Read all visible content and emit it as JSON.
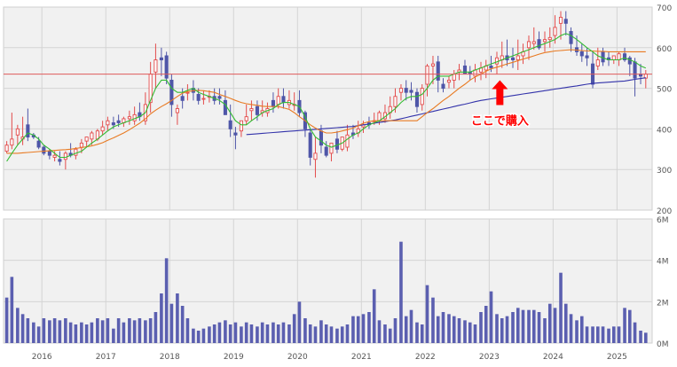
{
  "chart_data": [
    {
      "type": "candlestick",
      "title": "",
      "ylim": [
        200,
        700
      ],
      "y_ticks": [
        "700",
        "600",
        "500",
        "400",
        "300",
        "200"
      ],
      "x_ticks": [
        "2016",
        "2017",
        "2018",
        "2019",
        "2020",
        "2021",
        "2022",
        "2023",
        "2024",
        "2025"
      ],
      "grid": true,
      "reference_line": {
        "value": 535,
        "color": "#e05a5a"
      },
      "annotation": {
        "text": "ここで購入",
        "target": "2023",
        "price": 520,
        "color": "#ff0000"
      },
      "colors": {
        "up": "#e34b4b",
        "down": "#4f56a8",
        "ma_short": "#33bb33",
        "ma_mid": "#e87a22",
        "ma_long": "#3333aa"
      },
      "x": [
        2015.45,
        2015.53,
        2015.62,
        2015.7,
        2015.78,
        2015.87,
        2015.95,
        2016.03,
        2016.12,
        2016.2,
        2016.28,
        2016.37,
        2016.45,
        2016.53,
        2016.62,
        2016.7,
        2016.78,
        2016.87,
        2016.95,
        2017.03,
        2017.12,
        2017.2,
        2017.28,
        2017.37,
        2017.45,
        2017.53,
        2017.62,
        2017.7,
        2017.78,
        2017.87,
        2017.95,
        2018.03,
        2018.12,
        2018.2,
        2018.28,
        2018.37,
        2018.45,
        2018.53,
        2018.62,
        2018.7,
        2018.78,
        2018.87,
        2018.95,
        2019.03,
        2019.12,
        2019.2,
        2019.28,
        2019.37,
        2019.45,
        2019.53,
        2019.62,
        2019.7,
        2019.78,
        2019.87,
        2019.95,
        2020.03,
        2020.12,
        2020.2,
        2020.28,
        2020.37,
        2020.45,
        2020.53,
        2020.62,
        2020.7,
        2020.78,
        2020.87,
        2020.95,
        2021.03,
        2021.12,
        2021.2,
        2021.28,
        2021.37,
        2021.45,
        2021.53,
        2021.62,
        2021.7,
        2021.78,
        2021.87,
        2021.95,
        2022.03,
        2022.12,
        2022.2,
        2022.28,
        2022.37,
        2022.45,
        2022.53,
        2022.62,
        2022.7,
        2022.78,
        2022.87,
        2022.95,
        2023.03,
        2023.12,
        2023.2,
        2023.28,
        2023.37,
        2023.45,
        2023.53,
        2023.62,
        2023.7,
        2023.78,
        2023.87,
        2023.95,
        2024.03,
        2024.12,
        2024.2,
        2024.28,
        2024.37,
        2024.45,
        2024.53,
        2024.62,
        2024.7,
        2024.78,
        2024.87,
        2024.95,
        2025.03,
        2025.12,
        2025.2,
        2025.28,
        2025.37,
        2025.45
      ],
      "open": [
        345,
        360,
        385,
        375,
        410,
        385,
        370,
        355,
        345,
        330,
        325,
        325,
        340,
        335,
        355,
        370,
        375,
        375,
        395,
        410,
        415,
        420,
        415,
        425,
        420,
        440,
        420,
        465,
        540,
        575,
        580,
        520,
        440,
        480,
        490,
        500,
        485,
        475,
        480,
        480,
        480,
        470,
        420,
        390,
        395,
        420,
        445,
        455,
        440,
        440,
        470,
        460,
        480,
        460,
        460,
        470,
        440,
        390,
        325,
        395,
        355,
        340,
        375,
        350,
        355,
        390,
        390,
        405,
        415,
        420,
        420,
        425,
        440,
        455,
        490,
        500,
        495,
        490,
        460,
        510,
        555,
        565,
        510,
        515,
        520,
        540,
        555,
        540,
        530,
        540,
        545,
        555,
        560,
        570,
        580,
        575,
        570,
        580,
        600,
        610,
        620,
        615,
        620,
        630,
        660,
        670,
        640,
        600,
        590,
        580,
        560,
        555,
        590,
        575,
        570,
        570,
        585,
        575,
        565,
        535,
        525
      ],
      "high": [
        370,
        440,
        410,
        430,
        450,
        390,
        380,
        360,
        350,
        345,
        345,
        345,
        365,
        355,
        375,
        380,
        395,
        400,
        420,
        430,
        430,
        435,
        430,
        445,
        455,
        465,
        490,
        565,
        610,
        600,
        590,
        535,
        460,
        500,
        510,
        520,
        500,
        495,
        495,
        500,
        500,
        495,
        460,
        405,
        420,
        460,
        470,
        470,
        470,
        465,
        490,
        500,
        500,
        495,
        490,
        495,
        445,
        400,
        380,
        410,
        370,
        360,
        395,
        375,
        410,
        410,
        420,
        420,
        430,
        440,
        445,
        460,
        480,
        500,
        510,
        520,
        515,
        500,
        510,
        560,
        580,
        580,
        525,
        530,
        545,
        560,
        570,
        555,
        560,
        565,
        570,
        580,
        590,
        615,
        620,
        600,
        620,
        610,
        630,
        650,
        640,
        640,
        650,
        680,
        690,
        690,
        650,
        630,
        610,
        600,
        590,
        600,
        600,
        590,
        580,
        590,
        600,
        580,
        575,
        560,
        545
      ],
      "low": [
        340,
        350,
        360,
        360,
        370,
        375,
        350,
        335,
        325,
        320,
        310,
        300,
        330,
        325,
        340,
        355,
        360,
        370,
        385,
        395,
        400,
        405,
        405,
        410,
        410,
        420,
        410,
        440,
        500,
        530,
        510,
        430,
        410,
        450,
        470,
        470,
        460,
        460,
        465,
        460,
        460,
        440,
        380,
        350,
        380,
        410,
        420,
        420,
        430,
        430,
        440,
        450,
        450,
        450,
        445,
        430,
        380,
        310,
        280,
        340,
        330,
        320,
        340,
        345,
        345,
        375,
        380,
        390,
        400,
        410,
        410,
        415,
        425,
        440,
        470,
        470,
        470,
        440,
        445,
        480,
        510,
        490,
        490,
        500,
        500,
        520,
        535,
        520,
        515,
        520,
        525,
        540,
        535,
        550,
        555,
        550,
        545,
        560,
        570,
        595,
        595,
        590,
        600,
        610,
        620,
        630,
        590,
        580,
        565,
        555,
        500,
        545,
        555,
        555,
        560,
        555,
        565,
        530,
        480,
        510,
        500
      ],
      "close": [
        360,
        375,
        400,
        380,
        380,
        380,
        355,
        340,
        335,
        335,
        320,
        340,
        335,
        350,
        365,
        380,
        390,
        395,
        405,
        420,
        410,
        415,
        425,
        430,
        435,
        430,
        460,
        535,
        570,
        570,
        525,
        460,
        450,
        470,
        490,
        490,
        470,
        475,
        480,
        470,
        475,
        435,
        400,
        385,
        420,
        430,
        450,
        435,
        445,
        450,
        455,
        480,
        465,
        470,
        460,
        440,
        400,
        330,
        340,
        360,
        335,
        365,
        350,
        380,
        385,
        385,
        400,
        410,
        410,
        420,
        440,
        440,
        455,
        480,
        500,
        490,
        490,
        455,
        500,
        555,
        560,
        520,
        500,
        520,
        535,
        545,
        535,
        535,
        545,
        550,
        555,
        550,
        575,
        580,
        570,
        570,
        580,
        590,
        615,
        615,
        600,
        620,
        625,
        650,
        675,
        660,
        610,
        590,
        580,
        575,
        510,
        570,
        565,
        570,
        580,
        585,
        570,
        560,
        525,
        530,
        535
      ],
      "ma_short": [
        320,
        340,
        360,
        375,
        390,
        385,
        375,
        360,
        350,
        340,
        330,
        330,
        335,
        340,
        345,
        355,
        365,
        375,
        385,
        395,
        405,
        410,
        415,
        420,
        425,
        430,
        440,
        470,
        500,
        520,
        520,
        500,
        490,
        490,
        495,
        500,
        490,
        485,
        480,
        475,
        470,
        460,
        440,
        420,
        410,
        410,
        420,
        430,
        440,
        445,
        450,
        460,
        465,
        465,
        460,
        455,
        430,
        400,
        380,
        370,
        360,
        355,
        360,
        365,
        375,
        385,
        390,
        400,
        410,
        415,
        420,
        430,
        440,
        450,
        465,
        475,
        480,
        480,
        485,
        500,
        520,
        530,
        530,
        530,
        535,
        540,
        540,
        540,
        545,
        550,
        555,
        560,
        565,
        570,
        575,
        580,
        585,
        590,
        595,
        600,
        605,
        610,
        615,
        620,
        630,
        635,
        630,
        620,
        610,
        600,
        590,
        580,
        575,
        570,
        570,
        570,
        575,
        570,
        565,
        555,
        550
      ],
      "ma_mid": [
        340,
        340,
        340,
        341,
        342,
        343,
        344,
        345,
        346,
        347,
        348,
        349,
        350,
        352,
        354,
        356,
        358,
        362,
        366,
        372,
        378,
        384,
        390,
        398,
        406,
        414,
        425,
        437,
        446,
        455,
        462,
        470,
        480,
        488,
        492,
        494,
        495,
        494,
        492,
        490,
        485,
        480,
        475,
        470,
        465,
        462,
        460,
        458,
        456,
        455,
        455,
        455,
        452,
        448,
        440,
        430,
        420,
        410,
        402,
        395,
        390,
        390,
        392,
        395,
        398,
        402,
        408,
        414,
        418,
        420,
        420,
        420,
        420,
        420,
        420,
        420,
        420,
        420,
        430,
        440,
        450,
        460,
        470,
        480,
        490,
        500,
        510,
        520,
        528,
        535,
        542,
        548,
        552,
        556,
        560,
        564,
        568,
        572,
        576,
        580,
        584,
        588,
        590,
        592,
        593,
        594,
        595,
        594,
        593,
        592,
        592,
        591,
        591,
        590,
        590,
        590,
        590,
        590,
        590,
        590,
        590
      ],
      "ma_long": [
        null,
        null,
        null,
        null,
        null,
        null,
        null,
        null,
        null,
        null,
        null,
        null,
        null,
        null,
        null,
        null,
        null,
        null,
        null,
        null,
        null,
        null,
        null,
        null,
        null,
        null,
        null,
        null,
        null,
        null,
        null,
        null,
        null,
        null,
        null,
        null,
        null,
        null,
        null,
        null,
        null,
        null,
        null,
        null,
        null,
        386,
        387,
        388,
        389,
        390,
        391,
        392,
        393,
        394,
        395,
        396,
        397,
        398,
        399,
        400,
        401,
        402,
        403,
        404,
        405,
        406,
        408,
        410,
        412,
        414,
        416,
        418,
        420,
        422,
        425,
        428,
        431,
        434,
        437,
        440,
        443,
        446,
        449,
        452,
        455,
        458,
        461,
        464,
        467,
        470,
        472,
        474,
        476,
        478,
        480,
        482,
        484,
        486,
        488,
        490,
        492,
        494,
        496,
        498,
        500,
        502,
        504,
        506,
        508,
        510,
        512,
        513,
        514,
        515,
        516,
        517,
        518,
        520,
        522,
        524,
        526
      ]
    },
    {
      "type": "bar",
      "title": "",
      "ylim": [
        0,
        6
      ],
      "unit": "M",
      "y_ticks": [
        "6M",
        "4M",
        "2M",
        "0M"
      ],
      "x_ticks": [
        "2016",
        "2017",
        "2018",
        "2019",
        "2020",
        "2021",
        "2022",
        "2023",
        "2024",
        "2025"
      ],
      "color": "#5b5fb0",
      "x": [
        2015.45,
        2015.53,
        2015.62,
        2015.7,
        2015.78,
        2015.87,
        2015.95,
        2016.03,
        2016.12,
        2016.2,
        2016.28,
        2016.37,
        2016.45,
        2016.53,
        2016.62,
        2016.7,
        2016.78,
        2016.87,
        2016.95,
        2017.03,
        2017.12,
        2017.2,
        2017.28,
        2017.37,
        2017.45,
        2017.53,
        2017.62,
        2017.7,
        2017.78,
        2017.87,
        2017.95,
        2018.03,
        2018.12,
        2018.2,
        2018.28,
        2018.37,
        2018.45,
        2018.53,
        2018.62,
        2018.7,
        2018.78,
        2018.87,
        2018.95,
        2019.03,
        2019.12,
        2019.2,
        2019.28,
        2019.37,
        2019.45,
        2019.53,
        2019.62,
        2019.7,
        2019.78,
        2019.87,
        2019.95,
        2020.03,
        2020.12,
        2020.2,
        2020.28,
        2020.37,
        2020.45,
        2020.53,
        2020.62,
        2020.7,
        2020.78,
        2020.87,
        2020.95,
        2021.03,
        2021.12,
        2021.2,
        2021.28,
        2021.37,
        2021.45,
        2021.53,
        2021.62,
        2021.7,
        2021.78,
        2021.87,
        2021.95,
        2022.03,
        2022.12,
        2022.2,
        2022.28,
        2022.37,
        2022.45,
        2022.53,
        2022.62,
        2022.7,
        2022.78,
        2022.87,
        2022.95,
        2023.03,
        2023.12,
        2023.2,
        2023.28,
        2023.37,
        2023.45,
        2023.53,
        2023.62,
        2023.7,
        2023.78,
        2023.87,
        2023.95,
        2024.03,
        2024.12,
        2024.2,
        2024.28,
        2024.37,
        2024.45,
        2024.53,
        2024.62,
        2024.7,
        2024.78,
        2024.87,
        2024.95,
        2025.03,
        2025.12,
        2025.2,
        2025.28,
        2025.37,
        2025.45
      ],
      "values": [
        2.2,
        3.2,
        1.7,
        1.4,
        1.2,
        1.0,
        0.8,
        1.2,
        1.1,
        1.2,
        1.1,
        1.2,
        1.0,
        0.9,
        1.0,
        0.9,
        1.0,
        1.2,
        1.1,
        1.2,
        0.7,
        1.2,
        1.0,
        1.2,
        1.1,
        1.2,
        1.1,
        1.2,
        1.5,
        2.4,
        4.1,
        1.9,
        2.4,
        1.8,
        1.2,
        0.7,
        0.6,
        0.7,
        0.8,
        0.9,
        1.0,
        1.1,
        0.9,
        1.0,
        0.8,
        1.0,
        0.9,
        0.8,
        1.0,
        0.9,
        1.0,
        0.9,
        1.0,
        0.9,
        1.4,
        2.0,
        1.2,
        0.9,
        0.8,
        1.1,
        0.9,
        0.8,
        0.7,
        0.8,
        0.9,
        1.3,
        1.3,
        1.4,
        1.5,
        2.6,
        1.1,
        0.9,
        0.7,
        1.2,
        4.9,
        1.3,
        1.6,
        1.0,
        0.9,
        2.8,
        2.2,
        1.3,
        1.5,
        1.4,
        1.3,
        1.2,
        1.1,
        1.0,
        0.9,
        1.5,
        1.8,
        2.5,
        1.4,
        1.2,
        1.3,
        1.5,
        1.7,
        1.6,
        1.6,
        1.6,
        1.5,
        1.2,
        1.9,
        1.7,
        3.4,
        1.9,
        1.4,
        1.1,
        1.3,
        0.8,
        0.8,
        0.8,
        0.8,
        0.7,
        0.8,
        0.8,
        1.7,
        1.6,
        1.0,
        0.6,
        0.5
      ]
    }
  ]
}
